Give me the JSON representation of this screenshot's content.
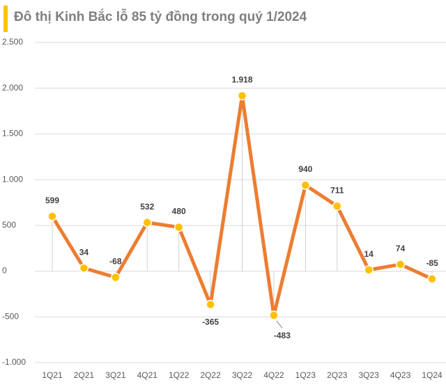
{
  "chart_data": {
    "type": "line",
    "title": "Đô thị Kinh Bắc lỗ 85 tỷ đồng trong quý 1/2024",
    "categories": [
      "1Q21",
      "2Q21",
      "3Q21",
      "4Q21",
      "1Q22",
      "2Q22",
      "3Q22",
      "4Q22",
      "1Q23",
      "2Q23",
      "3Q23",
      "4Q23",
      "1Q24"
    ],
    "values": [
      599,
      34,
      -68,
      532,
      480,
      -365,
      1918,
      -483,
      940,
      711,
      14,
      74,
      -85
    ],
    "value_labels": [
      "599",
      "34",
      "-68",
      "532",
      "480",
      "-365",
      "1.918",
      "-483",
      "940",
      "711",
      "14",
      "74",
      "-85"
    ],
    "color": "#ed7d31",
    "marker_color": "#ffc000",
    "ylim": [
      -1000,
      2500
    ],
    "yticks": [
      {
        "value": -1000,
        "label": "-1.000"
      },
      {
        "value": -500,
        "label": "-500"
      },
      0,
      500,
      {
        "value": 1000,
        "label": "1.000"
      },
      {
        "value": 1500,
        "label": "1.500"
      },
      {
        "value": 2000,
        "label": "2.000"
      },
      {
        "value": 2500,
        "label": "2.500"
      }
    ],
    "grid": true
  }
}
